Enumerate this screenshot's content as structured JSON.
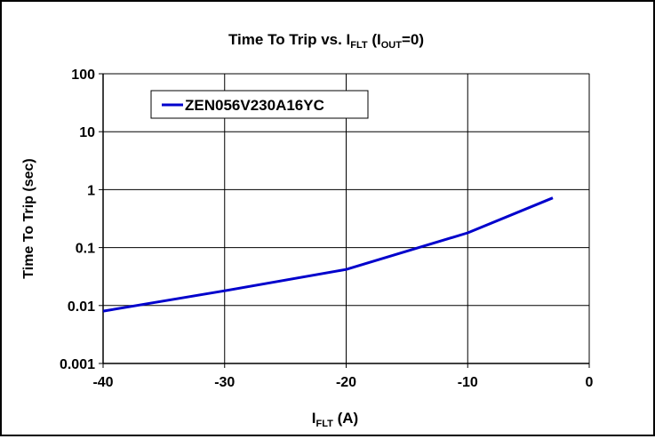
{
  "chart_data": {
    "type": "line",
    "title": {
      "prefix": "Time To Trip vs. I",
      "sub1": "FLT",
      "mid": " (I",
      "sub2": "OUT",
      "suffix": "=0)"
    },
    "xlabel": {
      "main": "I",
      "sub": "FLT",
      "unit": " (A)"
    },
    "ylabel": "Time To Trip (sec)",
    "xlim": [
      -40,
      0
    ],
    "ylim": [
      0.001,
      100
    ],
    "yscale": "log",
    "grid": true,
    "legend_position": "top-left",
    "x_ticks": [
      "-40",
      "-30",
      "-20",
      "-10",
      "0"
    ],
    "y_ticks": [
      "100",
      "10",
      "1",
      "0.1",
      "0.01",
      "0.001"
    ],
    "series": [
      {
        "name": "ZEN056V230A16YC",
        "color": "#0000CC",
        "x": [
          -40,
          -30,
          -20,
          -10,
          -3
        ],
        "y": [
          0.008,
          0.018,
          0.042,
          0.18,
          0.72
        ]
      }
    ]
  }
}
